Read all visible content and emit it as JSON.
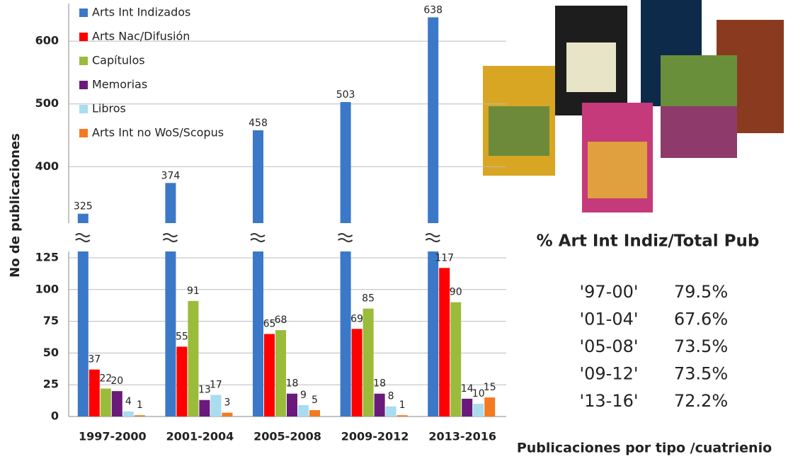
{
  "chart_data": {
    "type": "bar",
    "y_label": "No de publicaciones",
    "x_label": "Publicaciones por tipo /cuatrienio",
    "categories": [
      "1997-2000",
      "2001-2004",
      "2005-2008",
      "2009-2012",
      "2013-2016"
    ],
    "series": [
      {
        "name": "Arts Int Indizados",
        "color": "#3b78c8",
        "values": [
          325,
          374,
          458,
          503,
          638
        ]
      },
      {
        "name": "Arts Nac/Difusión",
        "color": "#ff0000",
        "values": [
          37,
          55,
          65,
          69,
          117
        ]
      },
      {
        "name": "Capítulos",
        "color": "#9bbb3b",
        "values": [
          22,
          91,
          68,
          85,
          90
        ]
      },
      {
        "name": "Memorias",
        "color": "#6a1a7a",
        "values": [
          20,
          13,
          18,
          18,
          14
        ]
      },
      {
        "name": "Libros",
        "color": "#a8dcee",
        "values": [
          4,
          17,
          9,
          8,
          10
        ]
      },
      {
        "name": "Arts Int no WoS/Scopus",
        "color": "#f47a20",
        "values": [
          1,
          3,
          5,
          1,
          15
        ]
      }
    ],
    "ylim": [
      0,
      130
    ],
    "yticks": [
      0,
      25,
      50,
      75,
      100,
      125
    ],
    "ylim_break": [
      310,
      660
    ],
    "yticks_break": [
      400,
      500,
      600
    ],
    "grid": true
  },
  "summary": {
    "title": "% Art Int Indiz/Total Pub",
    "rows": [
      [
        "'97-00'",
        "79.5%"
      ],
      [
        "'01-04'",
        "67.6%"
      ],
      [
        "'05-08'",
        "73.5%"
      ],
      [
        "'09-12'",
        "73.5%"
      ],
      [
        "'13-16'",
        "72.2%"
      ]
    ]
  }
}
